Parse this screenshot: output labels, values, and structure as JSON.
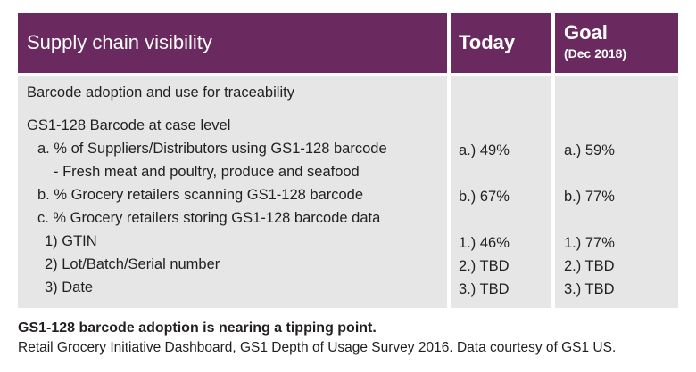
{
  "header": {
    "title": "Supply chain visibility",
    "today": "Today",
    "goal": "Goal",
    "goal_note": "(Dec 2018)"
  },
  "rows": [
    {
      "label": "Barcode adoption and use for traceability"
    },
    {
      "label": "GS1-128 Barcode at case level"
    },
    {
      "label": "a. % of Suppliers/Distributors using GS1-128 barcode",
      "today": "a.) 49%",
      "goal": "a.) 59%"
    },
    {
      "label": "- Fresh meat and poultry, produce and seafood"
    },
    {
      "label": "b. % Grocery retailers scanning GS1-128 barcode",
      "today": "b.) 67%",
      "goal": "b.) 77%"
    },
    {
      "label": "c. % Grocery retailers storing GS1-128 barcode data"
    },
    {
      "label": "1) GTIN",
      "today": "1.) 46%",
      "goal": "1.) 77%"
    },
    {
      "label": "2) Lot/Batch/Serial number",
      "today": "2.) TBD",
      "goal": "2.) TBD"
    },
    {
      "label": "3) Date",
      "today": "3.) TBD",
      "goal": "3.) TBD"
    }
  ],
  "caption": {
    "headline": "GS1-128 barcode adoption is nearing a tipping point.",
    "source": "Retail Grocery Initiative Dashboard, GS1 Depth of Usage Survey 2016. Data courtesy of GS1 US."
  }
}
